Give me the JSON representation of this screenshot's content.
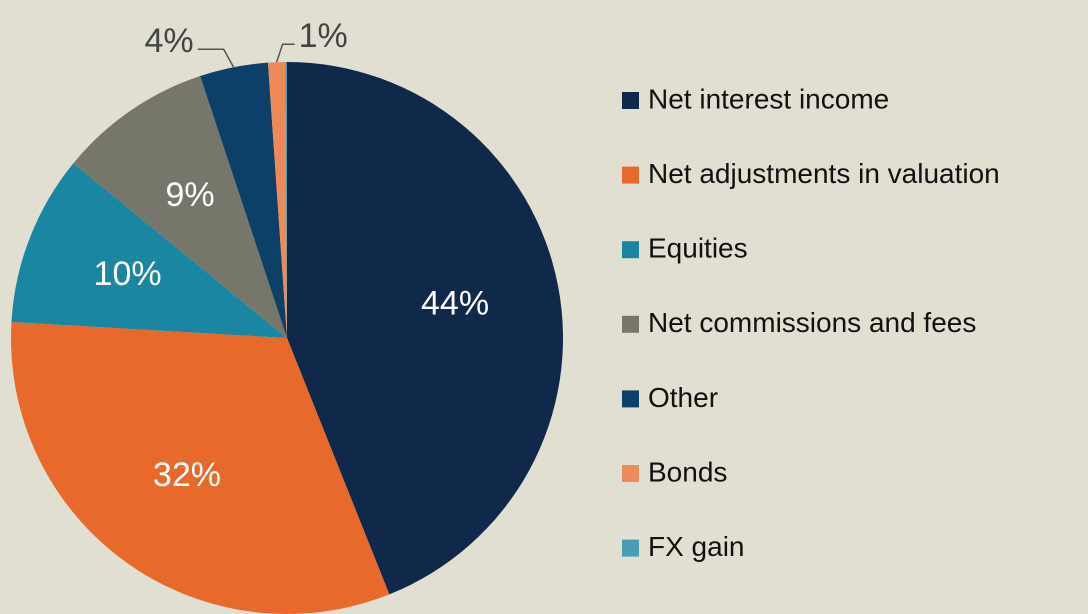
{
  "chart_data": {
    "type": "pie",
    "categories": [
      "Net interest income",
      "Net adjustments in valuation",
      "Equities",
      "Net commissions and fees",
      "Other",
      "Bonds",
      "FX gain"
    ],
    "values": [
      44,
      32,
      10,
      9,
      4,
      1,
      0.1
    ],
    "value_labels": [
      "44%",
      "32%",
      "10%",
      "9%",
      "4%",
      "1%",
      null
    ],
    "colors": [
      "#10294a",
      "#e8692c",
      "#1b86a2",
      "#76766a",
      "#0d4069",
      "#ee8a5a",
      "#4a9db5"
    ],
    "legend": "right"
  }
}
